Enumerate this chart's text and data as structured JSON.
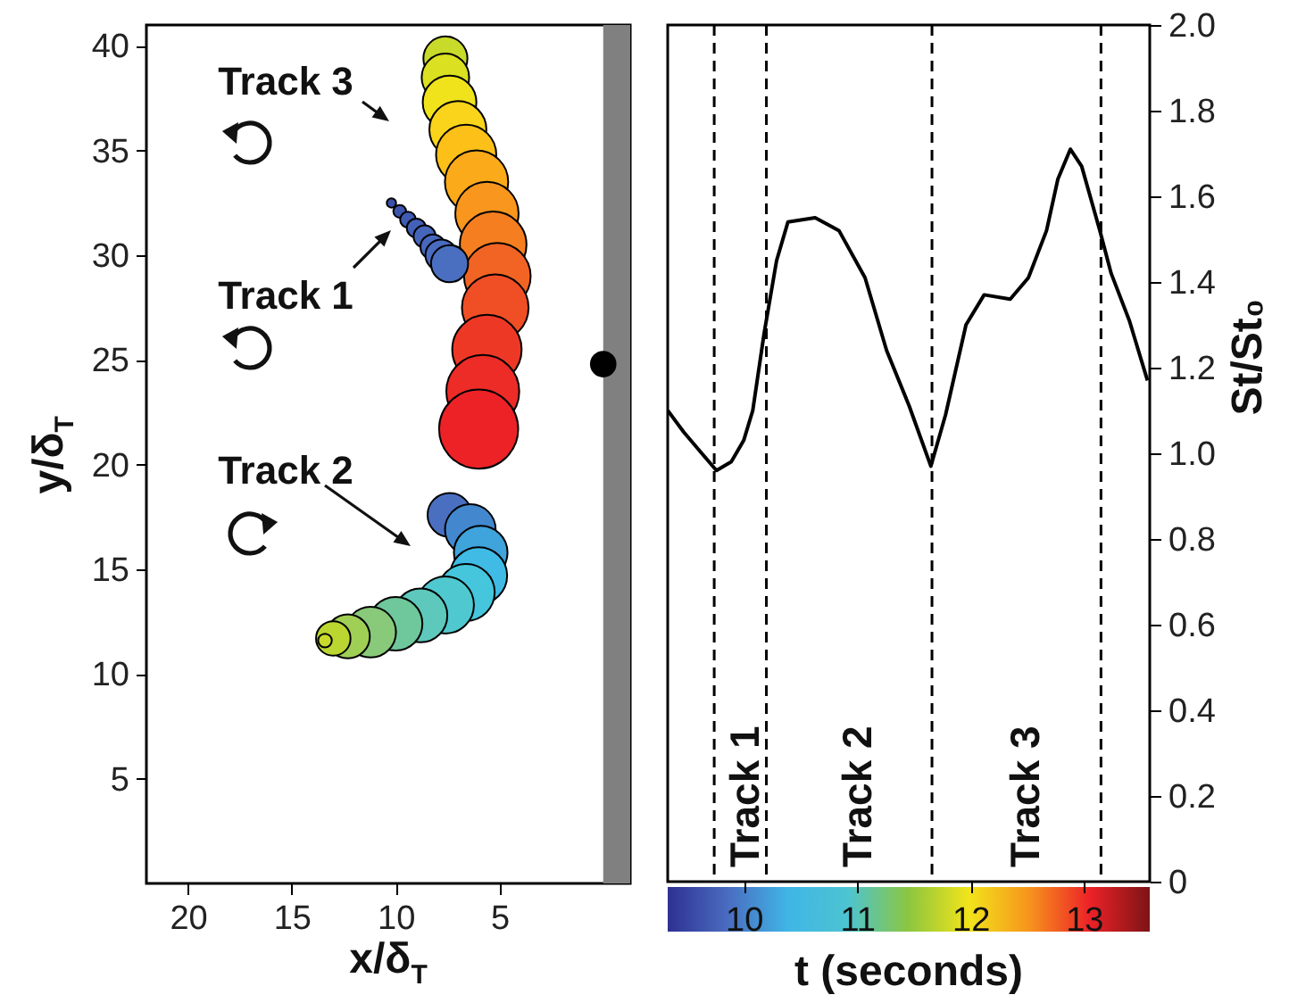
{
  "chart_data": [
    {
      "type": "bubble",
      "xlabel": "x/δ$_{T}$",
      "ylabel": "y/δ$_{T}$",
      "xlim": [
        22,
        -1.3
      ],
      "xticks": [
        20,
        15,
        10,
        5
      ],
      "ylim": [
        0,
        41
      ],
      "yticks": [
        5,
        10,
        15,
        20,
        25,
        30,
        35,
        40
      ],
      "grid": false,
      "bands": [
        {
          "axis": "x",
          "from": 0,
          "to": -1.3,
          "color": "#808080"
        }
      ],
      "annotations": [
        "Track 3",
        "Track 1",
        "Track 2"
      ],
      "series": [
        {
          "type": "bubble",
          "x": [
            7.4,
            6.4,
            5.9,
            6.0,
            6.6,
            7.6,
            8.8,
            10.0,
            11.2,
            12.3,
            13.0,
            13.4,
            7.6,
            7.6,
            7.4,
            7.0,
            6.6,
            6.1,
            5.6,
            5.3,
            5.1,
            5.2,
            5.6,
            5.8,
            6.0,
            10.2,
            9.8,
            9.4,
            9.0,
            8.6,
            8.2,
            7.8,
            7.4
          ],
          "values": [
            17.6,
            16.9,
            15.8,
            14.7,
            13.9,
            13.3,
            12.8,
            12.4,
            12.0,
            11.8,
            11.7,
            11.6,
            39.4,
            38.5,
            37.3,
            36.0,
            34.8,
            33.5,
            32.0,
            30.5,
            29.0,
            27.5,
            25.5,
            23.5,
            21.7,
            32.5,
            32.1,
            31.7,
            31.3,
            30.9,
            30.4,
            30.0,
            29.6
          ],
          "sizes": [
            0.31,
            0.41,
            0.46,
            0.52,
            0.52,
            0.52,
            0.46,
            0.46,
            0.41,
            0.31,
            0.19,
            0.03,
            0.31,
            0.36,
            0.46,
            0.52,
            0.58,
            0.64,
            0.64,
            0.71,
            0.71,
            0.71,
            0.77,
            0.85,
            1,
            0.014,
            0.026,
            0.04,
            0.058,
            0.078,
            0.1,
            0.16,
            0.22
          ],
          "colors": [
            "#4a6fc0",
            "#4388cf",
            "#3fa3dc",
            "#3fbbe5",
            "#45c6dc",
            "#50c8cf",
            "#5ec8bc",
            "#6fc79c",
            "#88c97a",
            "#a0cf55",
            "#bcd631",
            "#c8da2a",
            "#c8da2a",
            "#dbe021",
            "#f0e31c",
            "#f9d41a",
            "#fcc018",
            "#fbaa1a",
            "#f8961d",
            "#f57f20",
            "#f26423",
            "#f04e25",
            "#ee3826",
            "#ed2b27",
            "#ec2227",
            "#3b50a8",
            "#3d55ac",
            "#405bb2",
            "#4361b7",
            "#4666bb",
            "#4868be",
            "#4a6cc0",
            "#4a6fc0"
          ]
        },
        {
          "type": "scatter",
          "x": [
            0
          ],
          "values": [
            24.8
          ],
          "color": "#000000"
        }
      ]
    },
    {
      "type": "line",
      "xlabel": "t (seconds)",
      "ylabel": "St/St₀",
      "xlim": [
        9.33,
        13.58
      ],
      "xticks": [
        10,
        11,
        12,
        13
      ],
      "ylim": [
        0,
        2
      ],
      "yticks": [
        0,
        0.2,
        0.4,
        0.6,
        0.8,
        {
          "value": 1,
          "label": "1.0"
        },
        1.2,
        1.4,
        1.6,
        1.8,
        {
          "value": 2,
          "label": "2.0"
        }
      ],
      "grid": false,
      "line_style": "solid",
      "ref_lines": [
        {
          "axis": "x",
          "value": 9.74,
          "line_style": "dashed"
        },
        {
          "axis": "x",
          "value": 10.2,
          "line_style": "dashed"
        },
        {
          "axis": "x",
          "value": 11.66,
          "line_style": "dashed"
        },
        {
          "axis": "x",
          "value": 13.15,
          "line_style": "dashed"
        }
      ],
      "annotations": [
        "Track 1",
        "Track 2",
        "Track 3"
      ],
      "x": [
        9.33,
        9.47,
        9.63,
        9.76,
        9.89,
        10.0,
        10.08,
        10.18,
        10.29,
        10.39,
        10.63,
        10.84,
        11.07,
        11.26,
        11.46,
        11.65,
        11.78,
        11.96,
        12.12,
        12.35,
        12.51,
        12.67,
        12.77,
        12.88,
        12.98,
        13.14,
        13.24,
        13.4,
        13.56
      ],
      "series": [
        {
          "color": "#000000",
          "values": [
            1.1,
            1.05,
            1.0,
            0.96,
            0.98,
            1.03,
            1.1,
            1.28,
            1.45,
            1.54,
            1.55,
            1.52,
            1.41,
            1.24,
            1.11,
            0.97,
            1.09,
            1.3,
            1.37,
            1.36,
            1.41,
            1.52,
            1.64,
            1.71,
            1.67,
            1.52,
            1.42,
            1.31,
            1.17
          ]
        }
      ]
    }
  ]
}
